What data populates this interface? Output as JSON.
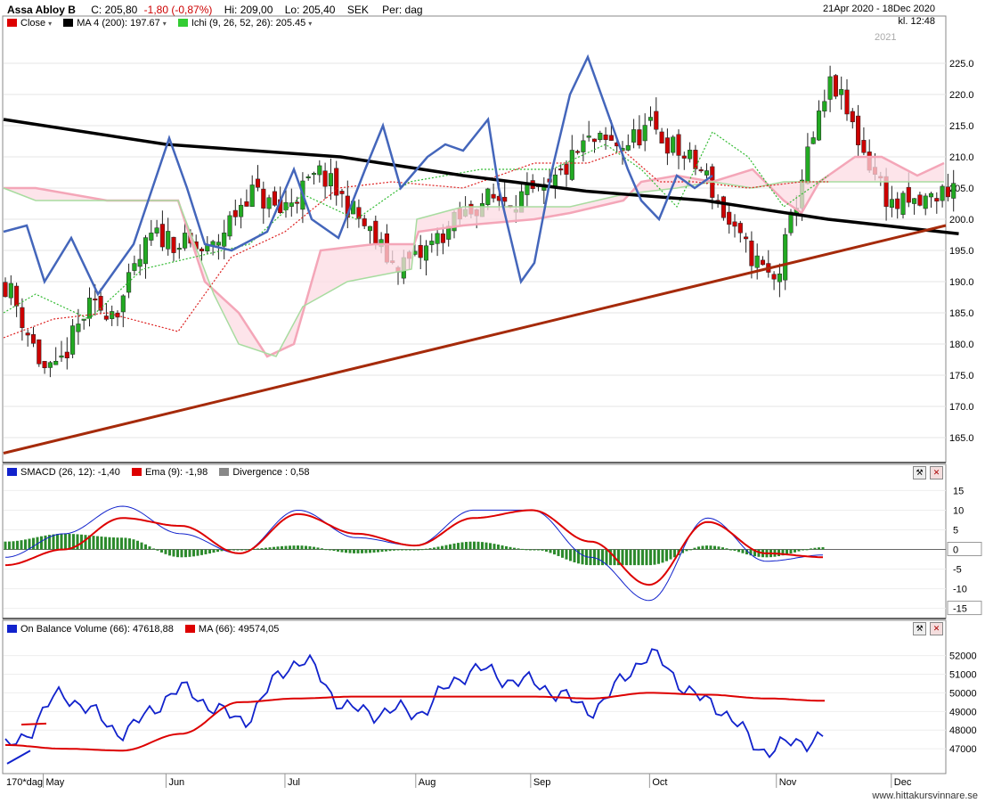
{
  "header": {
    "name": "Assa Abloy B",
    "close_label": "C: 205,80",
    "change": "-1,80 (-0,87%)",
    "hi": "Hi: 209,00",
    "lo": "Lo: 205,40",
    "currency": "SEK",
    "period": "Per: dag",
    "date_range": "21Apr 2020 - 18Dec 2020",
    "time": "kl. 12:48"
  },
  "colors": {
    "up": "#22aa22",
    "down": "#cc0000",
    "ma200": "#000000",
    "cloud_red": "#f4a6b8",
    "cloud_green": "#a8dca0",
    "trend": "#a52a0a",
    "blue": "#4466bb",
    "macd": "#1122cc",
    "signal": "#dd0000",
    "divergence": "#2c8a2c"
  },
  "legend_main": [
    {
      "label": "Close",
      "color": "#dd0000"
    },
    {
      "label": "MA 4 (200): 197.67",
      "color": "#000000"
    },
    {
      "label": "Ichi (9, 26, 52, 26): 205.45",
      "color": "#33cc33"
    }
  ],
  "legend_macd": [
    {
      "label": "SMACD (26, 12): -1,40",
      "color": "#1122cc"
    },
    {
      "label": "Ema (9): -1,98",
      "color": "#dd0000"
    },
    {
      "label": "Divergence : 0,58",
      "color": "#888888"
    }
  ],
  "legend_obv": [
    {
      "label": "On Balance Volume (66): 47618,88",
      "color": "#1122cc"
    },
    {
      "label": "MA (66): 49574,05",
      "color": "#dd0000"
    }
  ],
  "year_marker": "2021",
  "x_labels": [
    "170*dag",
    "May",
    "Jun",
    "Jul",
    "Aug",
    "Sep",
    "Oct",
    "Nov",
    "Dec",
    "2021"
  ],
  "watermark": "www.hittakursvinnare.se",
  "chart_data": [
    {
      "type": "candlestick",
      "title": "Assa Abloy B",
      "y_ticks": [
        165,
        170,
        175,
        180,
        185,
        190,
        195,
        200,
        205,
        210,
        215,
        220,
        225
      ],
      "ylim": [
        162,
        229
      ],
      "series": [
        {
          "name": "Close",
          "x": [
            "2020-04-21",
            "2020-05-04",
            "2020-06-01",
            "2020-07-01",
            "2020-08-03",
            "2020-09-01",
            "2020-10-01",
            "2020-11-02",
            "2020-11-16",
            "2020-12-01",
            "2020-12-18"
          ],
          "values": [
            190,
            178,
            196,
            205,
            196,
            204,
            214,
            193,
            221,
            204,
            205.8
          ]
        },
        {
          "name": "MA 4 (200)",
          "x": [
            "2020-04-21",
            "2020-06-01",
            "2020-07-15",
            "2020-08-15",
            "2020-09-15",
            "2020-10-15",
            "2020-11-15",
            "2020-12-18"
          ],
          "values": [
            216,
            212,
            210,
            207,
            204.5,
            203,
            200,
            197.67
          ]
        }
      ]
    },
    {
      "type": "bar",
      "title": "SMACD (26, 12)",
      "y_ticks": [
        -15,
        -10,
        -5,
        0,
        5,
        10,
        15
      ],
      "ylim": [
        -16,
        16
      ],
      "series": [
        {
          "name": "SMACD (26, 12)",
          "values": [
            -2,
            4,
            11,
            4,
            -1,
            10,
            3,
            1,
            10,
            10,
            -2,
            -13,
            8,
            -3,
            -1.4
          ]
        },
        {
          "name": "Ema (9)",
          "values": [
            -4,
            0,
            8,
            6,
            -1,
            9,
            4,
            1,
            8,
            10,
            2,
            -9,
            7,
            -1,
            -1.98
          ]
        },
        {
          "name": "Divergence",
          "values": [
            2,
            4,
            3,
            -2,
            0,
            1,
            -1,
            0,
            2,
            0,
            -4,
            -4,
            1,
            -2,
            0.58
          ]
        }
      ]
    },
    {
      "type": "line",
      "title": "On Balance Volume (66)",
      "y_ticks": [
        47000,
        48000,
        49000,
        50000,
        51000,
        52000
      ],
      "ylim": [
        46000,
        52700
      ],
      "series": [
        {
          "name": "On Balance Volume (66)",
          "values": [
            47000,
            49800,
            48000,
            50100,
            48600,
            51700,
            49000,
            49000,
            51200,
            50500,
            49200,
            51900,
            49500,
            47000,
            47618.88
          ]
        },
        {
          "name": "MA (66)",
          "values": [
            47200,
            47000,
            46900,
            47800,
            49500,
            49700,
            49800,
            49800,
            49800,
            49800,
            49700,
            50000,
            49900,
            49700,
            49574.05
          ]
        }
      ]
    }
  ]
}
